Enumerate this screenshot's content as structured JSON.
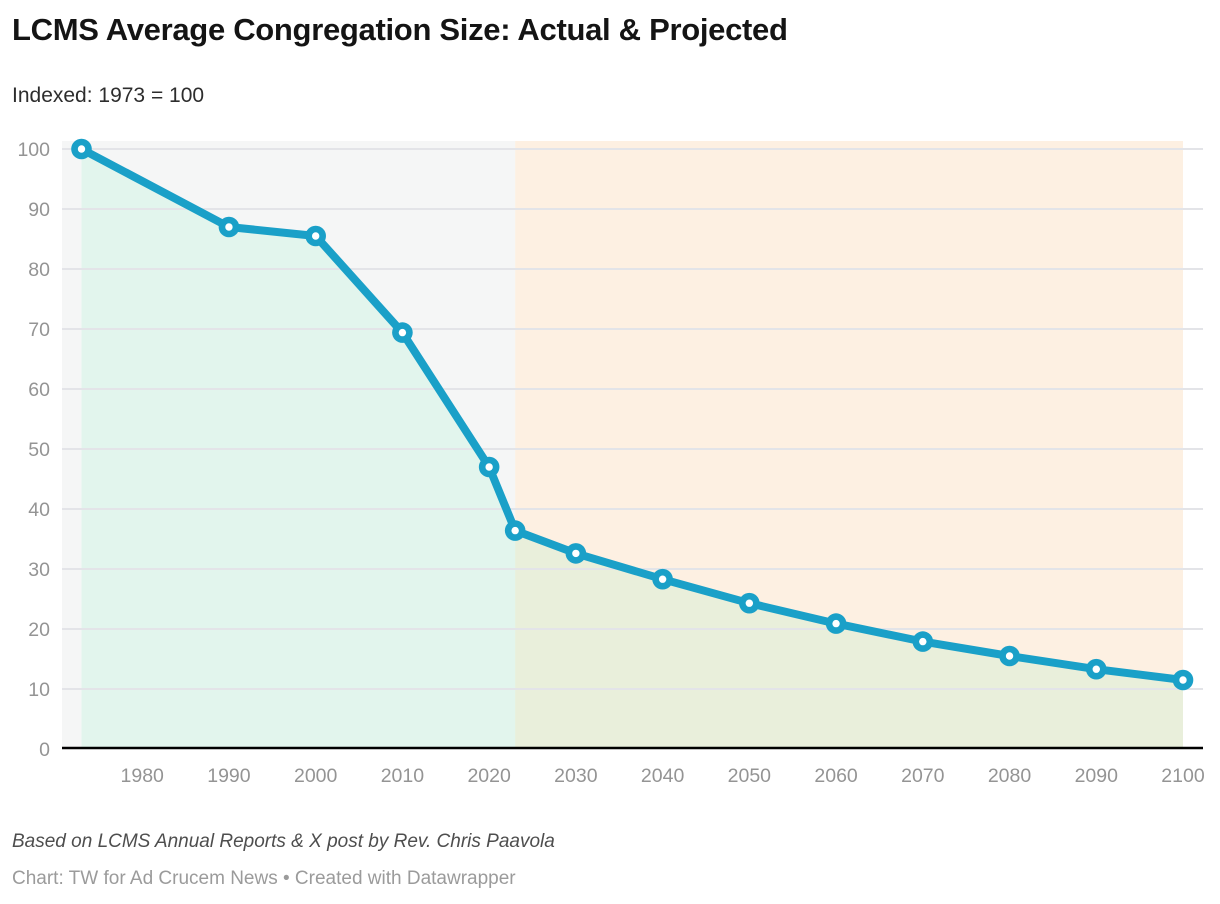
{
  "header": {
    "title": "LCMS Average Congregation Size: Actual & Projected",
    "subtitle": "Indexed: 1973 = 100"
  },
  "footer": {
    "source_note": "Based on LCMS Annual Reports & X post by Rev. Chris Paavola",
    "byline": "Chart: TW for Ad Crucem News • Created with Datawrapper"
  },
  "chart_data": {
    "type": "line",
    "title": "LCMS Average Congregation Size: Actual & Projected",
    "subtitle": "Indexed: 1973 = 100",
    "x": [
      1973,
      1990,
      2000,
      2010,
      2020,
      2023,
      2030,
      2040,
      2050,
      2060,
      2070,
      2080,
      2090,
      2100
    ],
    "values": [
      100,
      87,
      85.5,
      69.4,
      47,
      36.4,
      32.6,
      28.3,
      24.3,
      20.9,
      17.9,
      15.5,
      13.3,
      11.5
    ],
    "x_ticks": [
      1980,
      1990,
      2000,
      2010,
      2020,
      2030,
      2040,
      2050,
      2060,
      2070,
      2080,
      2090,
      2100
    ],
    "y_ticks": [
      0,
      10,
      20,
      30,
      40,
      50,
      60,
      70,
      80,
      90,
      100
    ],
    "xlim": [
      1973,
      2100
    ],
    "ylim": [
      0,
      100
    ],
    "grid": "horizontal",
    "legend": "none",
    "marker": "open-circle",
    "regions": [
      {
        "name": "actual",
        "from": 1973,
        "to": 2023,
        "color": "#f5f6f6"
      },
      {
        "name": "projected",
        "from": 2023,
        "to": 2100,
        "color": "#fdf0e2"
      }
    ],
    "colors": {
      "line": "#1aa0c8",
      "marker_hole": "#ffffff",
      "area_fill": "rgba(90,235,175,0.12)",
      "gridline": "#e3e4e8",
      "axis": "#000000",
      "tick_label": "#949494"
    }
  }
}
